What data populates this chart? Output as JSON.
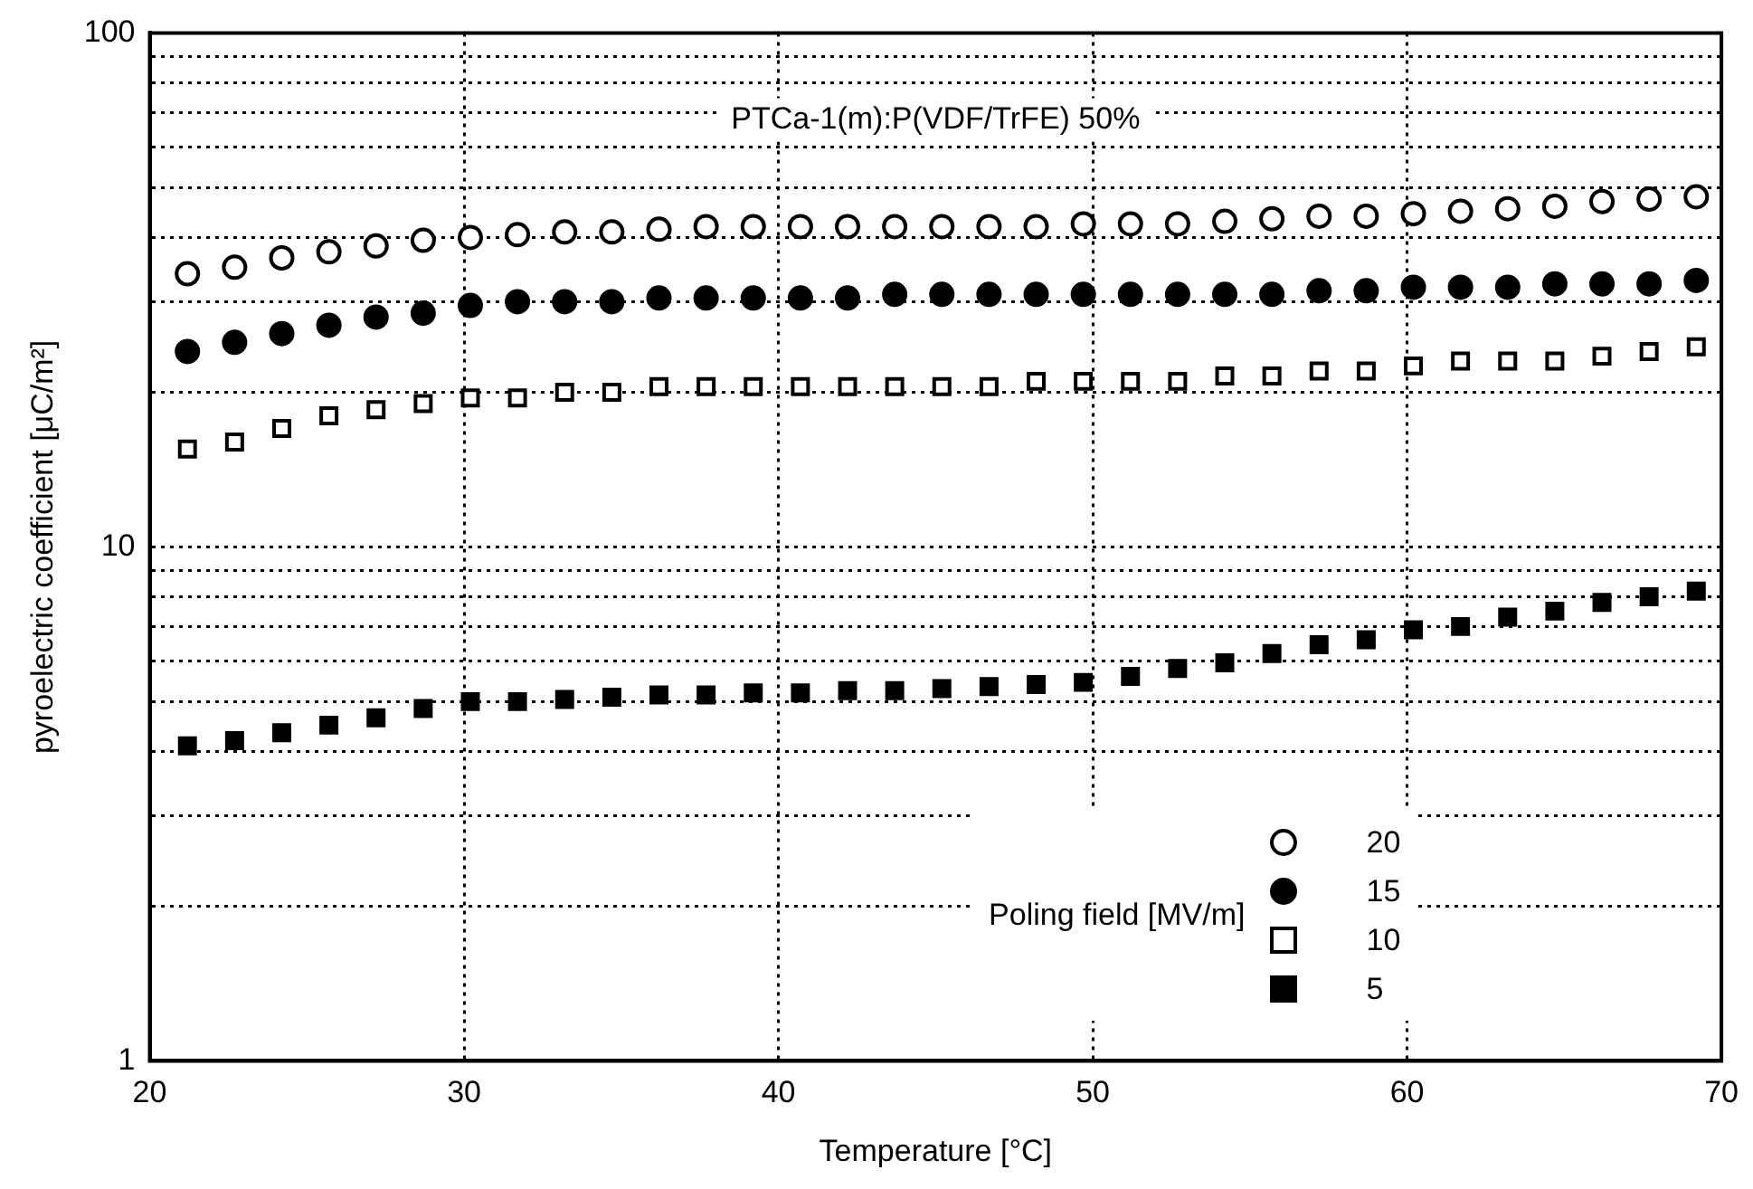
{
  "chart_data": {
    "type": "scatter",
    "xlabel": "Temperature [°C]",
    "ylabel": "pyroelectric coefficient [μC/m²]",
    "legend_title": "Poling field [MV/m]",
    "annotations": [
      "PTCa-1(m):P(VDF/TrFE) 50%"
    ],
    "x": [
      21.2,
      22.7,
      24.2,
      25.7,
      27.2,
      28.7,
      30.2,
      31.7,
      33.2,
      34.7,
      36.2,
      37.7,
      39.2,
      40.7,
      42.2,
      43.7,
      45.2,
      46.7,
      48.2,
      49.7,
      51.2,
      52.7,
      54.2,
      55.7,
      57.2,
      58.7,
      60.2,
      61.7,
      63.2,
      64.7,
      66.2,
      67.7,
      69.2
    ],
    "series": [
      {
        "name": "20",
        "color": "#ffffff",
        "marker": "circle",
        "values": [
          34,
          35,
          36.5,
          37.5,
          38.5,
          39.5,
          40,
          40.5,
          41,
          41,
          41.5,
          42,
          42,
          42,
          42,
          42,
          42,
          42,
          42,
          42.5,
          42.5,
          42.5,
          43,
          43.5,
          44,
          44,
          44.5,
          45,
          45.5,
          46,
          47,
          47.5,
          48
        ]
      },
      {
        "name": "15",
        "color": "#000000",
        "marker": "circle",
        "values": [
          24,
          25,
          26,
          27,
          28,
          28.5,
          29.5,
          30,
          30,
          30,
          30.5,
          30.5,
          30.5,
          30.5,
          30.5,
          31,
          31,
          31,
          31,
          31,
          31,
          31,
          31,
          31,
          31.5,
          31.5,
          32,
          32,
          32,
          32.5,
          32.5,
          32.5,
          33
        ]
      },
      {
        "name": "10",
        "color": "#ffffff",
        "marker": "square",
        "values": [
          15.5,
          16,
          17,
          18,
          18.5,
          19,
          19.5,
          19.5,
          20,
          20,
          20.5,
          20.5,
          20.5,
          20.5,
          20.5,
          20.5,
          20.5,
          20.5,
          21,
          21,
          21,
          21,
          21.5,
          21.5,
          22,
          22,
          22.5,
          23,
          23,
          23,
          23.5,
          24,
          24.5
        ]
      },
      {
        "name": "5",
        "color": "#000000",
        "marker": "square",
        "values": [
          4.1,
          4.2,
          4.35,
          4.5,
          4.65,
          4.85,
          5,
          5,
          5.05,
          5.1,
          5.15,
          5.15,
          5.2,
          5.2,
          5.25,
          5.25,
          5.3,
          5.35,
          5.4,
          5.45,
          5.6,
          5.8,
          5.95,
          6.2,
          6.45,
          6.6,
          6.9,
          7,
          7.3,
          7.5,
          7.8,
          8,
          8.2
        ]
      }
    ],
    "xlim": [
      20,
      70
    ],
    "xticks": [
      20,
      30,
      40,
      50,
      60,
      70
    ],
    "ylim": [
      1,
      100
    ],
    "log": true,
    "yticks": [
      1,
      {
        "value": 2,
        "label": null
      },
      {
        "value": 3,
        "label": null
      },
      {
        "value": 4,
        "label": null
      },
      {
        "value": 5,
        "label": null
      },
      {
        "value": 6,
        "label": null
      },
      {
        "value": 7,
        "label": null
      },
      {
        "value": 8,
        "label": null
      },
      {
        "value": 9,
        "label": null
      },
      10,
      {
        "value": 20,
        "label": null
      },
      {
        "value": 30,
        "label": null
      },
      {
        "value": 40,
        "label": null
      },
      {
        "value": 50,
        "label": null
      },
      {
        "value": 60,
        "label": null
      },
      {
        "value": 70,
        "label": null
      },
      {
        "value": 80,
        "label": null
      },
      {
        "value": 90,
        "label": null
      },
      100
    ],
    "grid": true,
    "legend": "bottom right"
  }
}
